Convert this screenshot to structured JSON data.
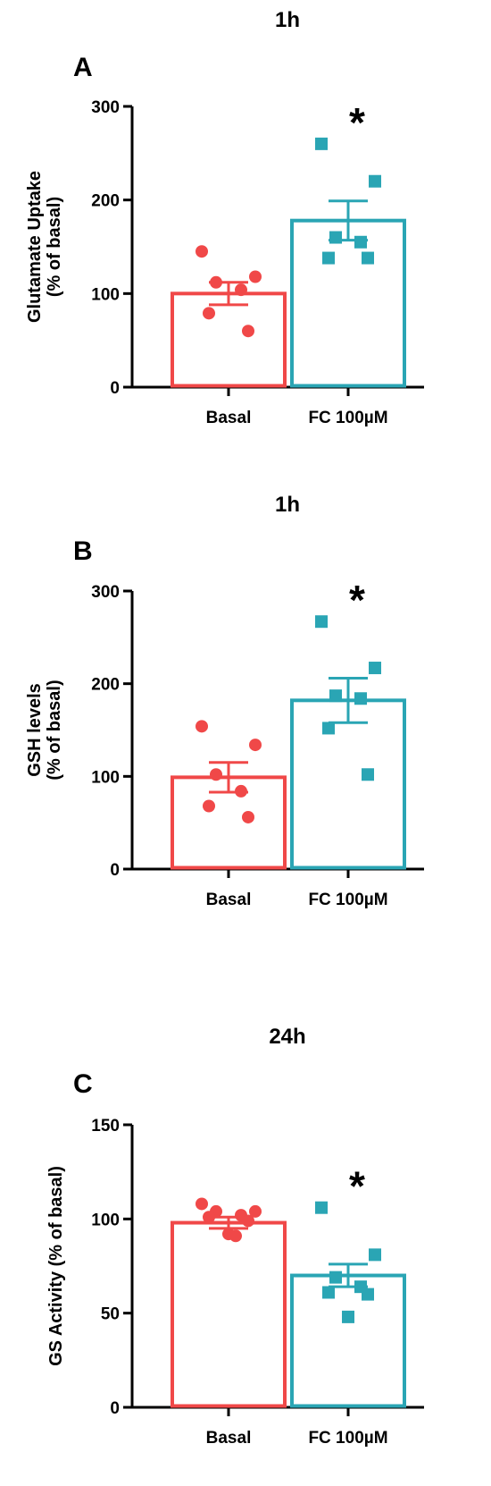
{
  "colors": {
    "basal": "#f04848",
    "fc": "#2aa5b4",
    "axis": "#000000"
  },
  "panels": [
    {
      "letter": "A",
      "time": "1h",
      "ylabel_lines": [
        "Glutamate Uptake",
        "(% of basal)"
      ],
      "chart_data": {
        "type": "bar",
        "categories": [
          "Basal",
          "FC 100µM"
        ],
        "ylim": [
          0,
          300
        ],
        "yticks": [
          0,
          100,
          200,
          300
        ],
        "series": [
          {
            "category": "Basal",
            "mean": 100,
            "sem": 12,
            "marker": "circle",
            "points": [
              145,
              118,
              112,
              104,
              79,
              60
            ]
          },
          {
            "category": "FC 100µM",
            "mean": 178,
            "sem": 21,
            "marker": "square",
            "points": [
              260,
              220,
              160,
              155,
              138,
              138
            ]
          }
        ],
        "significance": {
          "category": "FC 100µM",
          "symbol": "*"
        }
      }
    },
    {
      "letter": "B",
      "time": "1h",
      "ylabel_lines": [
        "GSH levels",
        "(% of basal)"
      ],
      "chart_data": {
        "type": "bar",
        "categories": [
          "Basal",
          "FC 100µM"
        ],
        "ylim": [
          0,
          300
        ],
        "yticks": [
          0,
          100,
          200,
          300
        ],
        "series": [
          {
            "category": "Basal",
            "mean": 99,
            "sem": 16,
            "marker": "circle",
            "points": [
              154,
              134,
              102,
              84,
              68,
              56
            ]
          },
          {
            "category": "FC 100µM",
            "mean": 182,
            "sem": 24,
            "marker": "square",
            "points": [
              267,
              217,
              187,
              184,
              152,
              102
            ]
          }
        ],
        "significance": {
          "category": "FC 100µM",
          "symbol": "*"
        }
      }
    },
    {
      "letter": "C",
      "time": "24h",
      "ylabel_lines": [
        "GS Activity (% of basal)"
      ],
      "chart_data": {
        "type": "bar",
        "categories": [
          "Basal",
          "FC 100µM"
        ],
        "ylim": [
          0,
          150
        ],
        "yticks": [
          0,
          50,
          100,
          150
        ],
        "series": [
          {
            "category": "Basal",
            "mean": 98,
            "sem": 3,
            "marker": "circle",
            "points": [
              108,
              104,
              104,
              102,
              101,
              99,
              92,
              91
            ]
          },
          {
            "category": "FC 100µM",
            "mean": 70,
            "sem": 6,
            "marker": "square",
            "points": [
              106,
              81,
              69,
              64,
              61,
              60,
              48
            ]
          }
        ],
        "significance": {
          "category": "FC 100µM",
          "symbol": "*"
        }
      }
    }
  ]
}
